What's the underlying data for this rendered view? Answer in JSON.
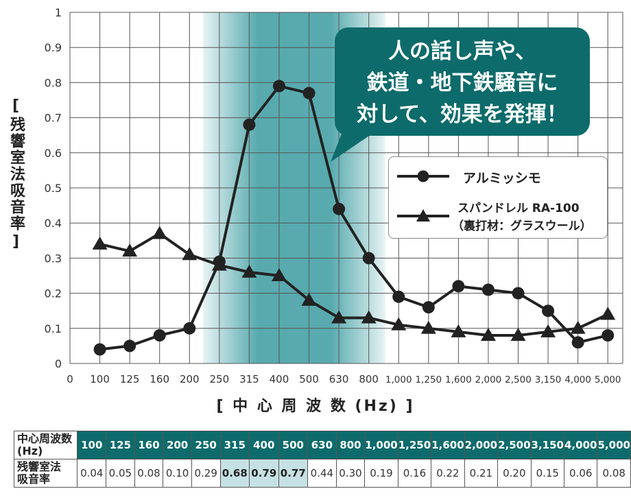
{
  "chart_data": {
    "type": "line",
    "categories": [
      "100",
      "125",
      "160",
      "200",
      "250",
      "315",
      "400",
      "500",
      "630",
      "800",
      "1,000",
      "1,250",
      "1,600",
      "2,000",
      "2,500",
      "3,150",
      "4,000",
      "5,000"
    ],
    "x_origin_label": "0",
    "xlabel": "[ 中 心 周 波 数 (Hz) ]",
    "ylabel": "残響室法吸音率",
    "ylim": [
      0,
      1
    ],
    "yticks": [
      "0",
      "0.1",
      "0.2",
      "0.3",
      "0.4",
      "0.5",
      "0.6",
      "0.7",
      "0.8",
      "0.9",
      "1"
    ],
    "grid": true,
    "highlight_band": [
      "250",
      "800"
    ],
    "legend_position": "right",
    "series": [
      {
        "name": "アルミッシモ",
        "marker": "circle",
        "values": [
          0.04,
          0.05,
          0.08,
          0.1,
          0.29,
          0.68,
          0.79,
          0.77,
          0.44,
          0.3,
          0.19,
          0.16,
          0.22,
          0.21,
          0.2,
          0.15,
          0.06,
          0.08
        ]
      },
      {
        "name": "スパンドレル RA-100",
        "name_sub": "（裏打材：グラスウール）",
        "marker": "triangle",
        "values": [
          0.34,
          0.32,
          0.37,
          0.31,
          0.28,
          0.26,
          0.25,
          0.18,
          0.13,
          0.13,
          0.11,
          0.1,
          0.09,
          0.08,
          0.08,
          0.09,
          0.1,
          0.14
        ]
      }
    ]
  },
  "callout": {
    "lines": [
      "人の話し声や、",
      "鉄道・地下鉄騒音に",
      "対して、効果を発揮！"
    ]
  },
  "table": {
    "header_label_1": "中心周波数",
    "header_label_2": "(Hz)",
    "row_label_1": "残響室法",
    "row_label_2": "吸音率",
    "frequencies": [
      "100",
      "125",
      "160",
      "200",
      "250",
      "315",
      "400",
      "500",
      "630",
      "800",
      "1,000",
      "1,250",
      "1,600",
      "2,000",
      "2,500",
      "3,150",
      "4,000",
      "5,000"
    ],
    "values": [
      "0.04",
      "0.05",
      "0.08",
      "0.10",
      "0.29",
      "0.68",
      "0.79",
      "0.77",
      "0.44",
      "0.30",
      "0.19",
      "0.16",
      "0.22",
      "0.21",
      "0.20",
      "0.15",
      "0.06",
      "0.08"
    ],
    "highlighted": [
      "315",
      "400",
      "500"
    ]
  },
  "colors": {
    "accent": "#0e6b6b",
    "band": "#3a9ba0",
    "line": "#222222",
    "highlight_cell": "#c6e1e3"
  }
}
